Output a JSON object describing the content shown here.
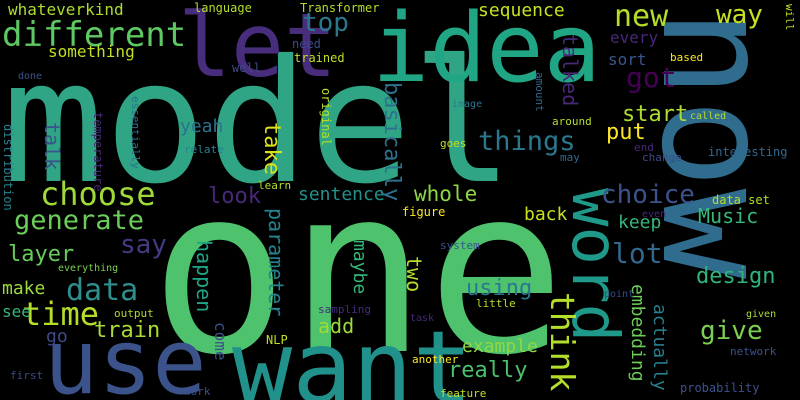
{
  "words": {
    "model": {
      "text": "model",
      "color": "#2fa585"
    },
    "one": {
      "text": "one",
      "color": "#4ec26d"
    },
    "now": {
      "text": "now",
      "color": "#2f6c8e"
    },
    "want": {
      "text": "want",
      "color": "#21918c"
    },
    "use": {
      "text": "use",
      "color": "#3b528b"
    },
    "let": {
      "text": "let",
      "color": "#472d7b"
    },
    "idea": {
      "text": "idea",
      "color": "#21a685"
    },
    "word": {
      "text": "word",
      "color": "#1f9a8a"
    },
    "different": {
      "text": "different",
      "color": "#5ec962"
    },
    "choose": {
      "text": "choose",
      "color": "#a0da39"
    },
    "generate": {
      "text": "generate",
      "color": "#6ccd5a"
    },
    "time": {
      "text": "time",
      "color": "#b5de2b"
    },
    "things": {
      "text": "things",
      "color": "#2a788e"
    },
    "data": {
      "text": "data",
      "color": "#2f8f8e"
    },
    "say": {
      "text": "say",
      "color": "#443a83"
    },
    "got": {
      "text": "got",
      "color": "#440154"
    },
    "think": {
      "text": "think",
      "color": "#b5de2b"
    },
    "new": {
      "text": "new",
      "color": "#b5de2b"
    },
    "choice": {
      "text": "choice",
      "color": "#3b528b"
    },
    "sentence": {
      "text": "sentence",
      "color": "#21918c"
    },
    "whole": {
      "text": "whole",
      "color": "#90d743"
    },
    "top": {
      "text": "top",
      "color": "#2a788e"
    },
    "lot": {
      "text": "lot",
      "color": "#31688e"
    },
    "train": {
      "text": "train",
      "color": "#a8db34"
    },
    "give": {
      "text": "give",
      "color": "#7ad151"
    },
    "way": {
      "text": "way",
      "color": "#c8e020"
    },
    "sequence": {
      "text": "sequence",
      "color": "#c8e020"
    },
    "talked": {
      "text": "talked",
      "color": "#482878"
    },
    "basically": {
      "text": "basically",
      "color": "#2c728e"
    },
    "really": {
      "text": "really",
      "color": "#4ac16d"
    },
    "using": {
      "text": "using",
      "color": "#2a788e"
    },
    "design": {
      "text": "design",
      "color": "#2fb47c"
    },
    "layer": {
      "text": "layer",
      "color": "#67cc5c"
    },
    "Music": {
      "text": "Music",
      "color": "#37b878"
    },
    "put": {
      "text": "put",
      "color": "#fde725"
    },
    "start": {
      "text": "start",
      "color": "#addc30"
    },
    "take": {
      "text": "take",
      "color": "#d8e219"
    },
    "make": {
      "text": "make",
      "color": "#9bd93c"
    },
    "talk": {
      "text": "talk",
      "color": "#3b528b"
    },
    "look": {
      "text": "look",
      "color": "#482878"
    },
    "yeah": {
      "text": "yeah",
      "color": "#2c728e"
    },
    "back": {
      "text": "back",
      "color": "#c8e020"
    },
    "example": {
      "text": "example",
      "color": "#90d743"
    },
    "two": {
      "text": "two",
      "color": "#b5de2b"
    },
    "maybe": {
      "text": "maybe",
      "color": "#35b779"
    },
    "happen": {
      "text": "happen",
      "color": "#20a486"
    },
    "parameter": {
      "text": "parameter",
      "color": "#26828e"
    },
    "embedding": {
      "text": "embedding",
      "color": "#6ece58"
    },
    "actually": {
      "text": "actually",
      "color": "#277f8e"
    },
    "keep": {
      "text": "keep",
      "color": "#35b779"
    },
    "come": {
      "text": "come",
      "color": "#3b528b"
    },
    "add": {
      "text": "add",
      "color": "#9fda3a"
    },
    "something": {
      "text": "something",
      "color": "#c2df23"
    },
    "every": {
      "text": "every",
      "color": "#482878"
    },
    "sort": {
      "text": "sort",
      "color": "#39568c"
    },
    "see": {
      "text": "see",
      "color": "#35b779"
    },
    "go": {
      "text": "go",
      "color": "#3e4a89"
    },
    "whateverkind": {
      "text": "whateverkind",
      "color": "#addc30"
    },
    "language": {
      "text": "language",
      "color": "#b5de2b"
    },
    "Transformer": {
      "text": "Transformer",
      "color": "#b5de2b"
    },
    "need": {
      "text": "need",
      "color": "#3e4a89"
    },
    "trained": {
      "text": "trained",
      "color": "#c2df23"
    },
    "based": {
      "text": "based",
      "color": "#fde725"
    },
    "will": {
      "text": "will",
      "color": "#c2df23"
    },
    "well": {
      "text": "well",
      "color": "#3e4989"
    },
    "done": {
      "text": "done",
      "color": "#3b528b"
    },
    "image": {
      "text": "image",
      "color": "#2a788e"
    },
    "amount": {
      "text": "amount",
      "color": "#31688e"
    },
    "around": {
      "text": "around",
      "color": "#b5de2b"
    },
    "called": {
      "text": "called",
      "color": "#b5de2b"
    },
    "end": {
      "text": "end",
      "color": "#482878"
    },
    "change": {
      "text": "change",
      "color": "#3e4a89"
    },
    "interesting": {
      "text": "interesting",
      "color": "#31688e"
    },
    "relate": {
      "text": "relate",
      "color": "#26828e"
    },
    "original": {
      "text": "original",
      "color": "#b5de2b"
    },
    "goes": {
      "text": "goes",
      "color": "#c2df23"
    },
    "may": {
      "text": "may",
      "color": "#31688e"
    },
    "essentially": {
      "text": "essentially",
      "color": "#2c728e"
    },
    "temperature": {
      "text": "temperature",
      "color": "#482878"
    },
    "distribution": {
      "text": "distribution",
      "color": "#26828e"
    },
    "learn": {
      "text": "learn",
      "color": "#b5de2b"
    },
    "figure": {
      "text": "figure",
      "color": "#fde725"
    },
    "data_set": {
      "text": "data set",
      "color": "#b5de2b"
    },
    "even": {
      "text": "even",
      "color": "#482878"
    },
    "system": {
      "text": "system",
      "color": "#39568c"
    },
    "everything": {
      "text": "everything",
      "color": "#7ad151"
    },
    "point": {
      "text": "point",
      "color": "#3e4a89"
    },
    "little": {
      "text": "little",
      "color": "#b5de2b"
    },
    "given": {
      "text": "given",
      "color": "#addc30"
    },
    "output": {
      "text": "output",
      "color": "#addc30"
    },
    "sampling": {
      "text": "sampling",
      "color": "#472d7b"
    },
    "task": {
      "text": "task",
      "color": "#482878"
    },
    "NLP": {
      "text": "NLP",
      "color": "#c2df23"
    },
    "network": {
      "text": "network",
      "color": "#3b528b"
    },
    "first": {
      "text": "first",
      "color": "#3e4a89"
    },
    "another": {
      "text": "another",
      "color": "#fde725"
    },
    "probability": {
      "text": "probability",
      "color": "#3b528b"
    },
    "work": {
      "text": "work",
      "color": "#3b528b"
    },
    "feature": {
      "text": "feature",
      "color": "#c2df23"
    }
  }
}
